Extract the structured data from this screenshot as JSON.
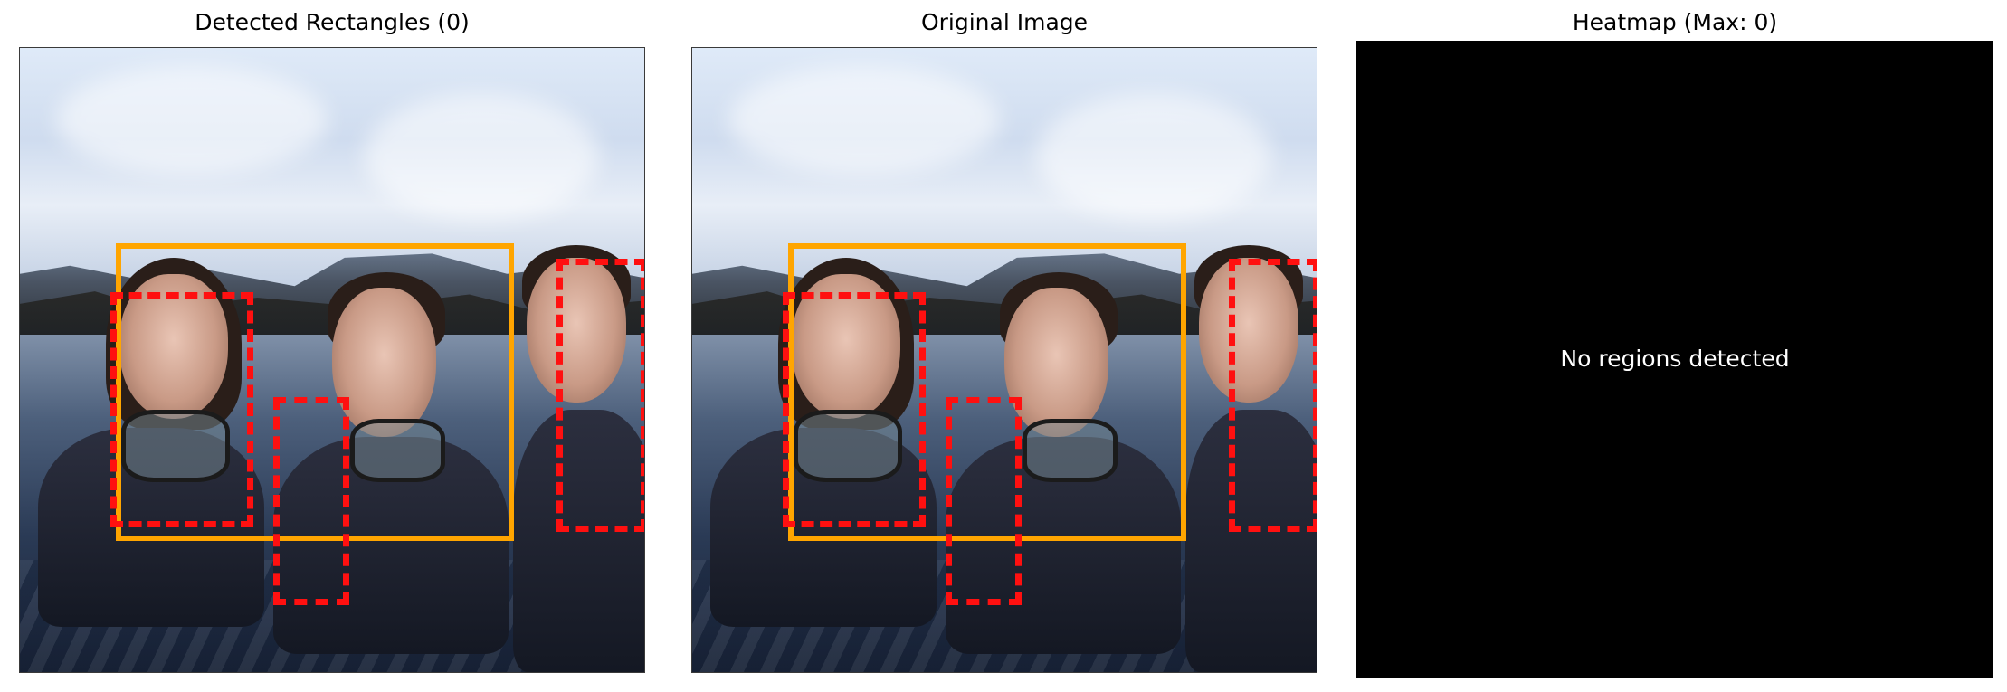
{
  "panels": [
    {
      "title": "Detected Rectangles (0)"
    },
    {
      "title": "Original Image"
    },
    {
      "title": "Heatmap (Max: 0)",
      "message": "No regions detected"
    }
  ],
  "colors": {
    "detection_box": "#ffa500",
    "ground_truth_box": "#ff1010",
    "heatmap_background": "#000000"
  }
}
